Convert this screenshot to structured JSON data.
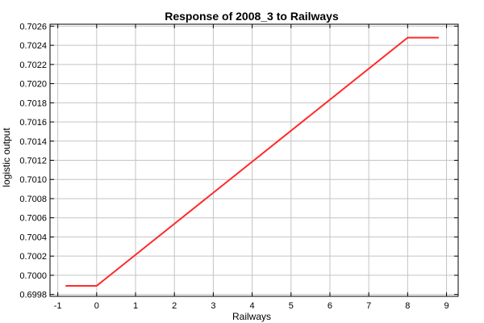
{
  "chart_data": {
    "type": "line",
    "title": "Response of 2008_3 to Railways",
    "xlabel": "Railways",
    "ylabel": "logistic output",
    "xlim": [
      -1.2,
      9.3
    ],
    "ylim": [
      0.69978,
      0.70262
    ],
    "xticks": [
      "-1",
      "0",
      "1",
      "2",
      "3",
      "4",
      "5",
      "6",
      "7",
      "8",
      "9"
    ],
    "yticks": [
      "0.6998",
      "0.7000",
      "0.7002",
      "0.7004",
      "0.7006",
      "0.7008",
      "0.7010",
      "0.7012",
      "0.7014",
      "0.7016",
      "0.7018",
      "0.7020",
      "0.7022",
      "0.7024",
      "0.7026"
    ],
    "grid": true,
    "series": [
      {
        "color": "#ff2a2a",
        "x": [
          -0.8,
          0,
          8,
          8.8
        ],
        "y": [
          0.69989,
          0.69989,
          0.70248,
          0.70248
        ]
      }
    ]
  }
}
